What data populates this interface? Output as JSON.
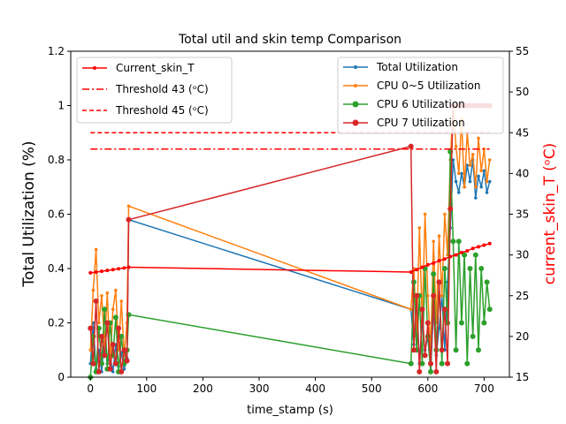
{
  "chart_data": {
    "type": "line",
    "title": "Total util and skin temp Comparison",
    "xlabel": "time_stamp (s)",
    "ylabel": "Total Utilization (%)",
    "y2label": "current_skin_T (ᵒC)",
    "xlim": [
      -35,
      745
    ],
    "ylim": [
      0,
      1.2
    ],
    "y2lim": [
      15,
      55
    ],
    "xticks": [
      0,
      100,
      200,
      300,
      400,
      500,
      600,
      700
    ],
    "yticks": [
      0.0,
      0.2,
      0.4,
      0.6,
      0.8,
      1.0,
      1.2
    ],
    "y2ticks": [
      15,
      20,
      25,
      30,
      35,
      40,
      45,
      50,
      55
    ],
    "legend_left_position": "upper-left",
    "legend_right_position": "upper-right",
    "colors": {
      "skin": "#ff0000",
      "total": "#1f77b4",
      "cpu05": "#ff7f0e",
      "cpu6": "#2ca02c",
      "cpu7": "#d62728"
    },
    "right_axis_series": [
      {
        "name": "Current_skin_T",
        "style": "solid-star",
        "x": [
          0,
          10,
          20,
          30,
          40,
          50,
          60,
          68,
          570,
          580,
          590,
          600,
          610,
          620,
          630,
          640,
          650,
          660,
          670,
          680,
          690,
          700,
          710
        ],
        "y": [
          27.8,
          27.9,
          28.0,
          28.1,
          28.2,
          28.3,
          28.4,
          28.5,
          27.9,
          28.2,
          28.5,
          28.8,
          29.0,
          29.3,
          29.5,
          29.8,
          30.0,
          30.3,
          30.5,
          30.8,
          31.0,
          31.2,
          31.4
        ]
      },
      {
        "name": "Threshold 43 (ᵒC)",
        "style": "dashdot",
        "x": [
          0,
          710
        ],
        "y": [
          43,
          43
        ]
      },
      {
        "name": "Threshold 45 (ᵒC)",
        "style": "dashed",
        "x": [
          0,
          710
        ],
        "y": [
          45,
          45
        ]
      }
    ],
    "left_axis_series": [
      {
        "name": "Total Utilization",
        "style": "line-dot",
        "x": [
          0,
          5,
          10,
          15,
          20,
          25,
          30,
          35,
          40,
          45,
          50,
          55,
          60,
          65,
          68,
          570,
          575,
          580,
          585,
          590,
          595,
          600,
          605,
          610,
          615,
          620,
          625,
          630,
          635,
          640,
          645,
          650,
          655,
          660,
          665,
          670,
          675,
          680,
          685,
          690,
          695,
          700,
          705,
          710
        ],
        "y": [
          0.05,
          0.2,
          0.03,
          0.1,
          0.02,
          0.15,
          0.05,
          0.08,
          0.02,
          0.12,
          0.04,
          0.09,
          0.03,
          0.07,
          0.58,
          0.25,
          0.12,
          0.3,
          0.05,
          0.2,
          0.1,
          0.15,
          0.02,
          0.25,
          0.08,
          0.18,
          0.3,
          0.1,
          0.35,
          0.55,
          0.8,
          0.72,
          0.68,
          0.75,
          0.7,
          0.78,
          0.72,
          0.8,
          0.66,
          0.74,
          0.7,
          0.76,
          0.68,
          0.72
        ]
      },
      {
        "name": "CPU 0~5 Utilization",
        "style": "line-dot",
        "x": [
          0,
          5,
          10,
          15,
          20,
          25,
          30,
          35,
          40,
          45,
          50,
          55,
          60,
          65,
          68,
          570,
          575,
          580,
          585,
          590,
          595,
          600,
          605,
          610,
          615,
          620,
          625,
          630,
          635,
          640,
          645,
          650,
          655,
          660,
          665,
          670,
          675,
          680,
          685,
          690,
          695,
          700,
          705,
          710
        ],
        "y": [
          0.1,
          0.32,
          0.47,
          0.2,
          0.3,
          0.12,
          0.31,
          0.05,
          0.25,
          0.32,
          0.1,
          0.28,
          0.08,
          0.2,
          0.63,
          0.25,
          0.4,
          0.15,
          0.55,
          0.2,
          0.6,
          0.3,
          0.1,
          0.5,
          0.2,
          0.52,
          0.3,
          0.6,
          0.45,
          0.8,
          1.0,
          0.85,
          0.75,
          0.95,
          0.7,
          0.9,
          0.78,
          0.82,
          0.7,
          0.88,
          0.76,
          0.84,
          0.72,
          0.8
        ]
      },
      {
        "name": "CPU 6 Utilization",
        "style": "line-circle",
        "x": [
          0,
          5,
          10,
          15,
          20,
          25,
          30,
          35,
          40,
          45,
          50,
          55,
          60,
          65,
          68,
          570,
          575,
          580,
          585,
          590,
          595,
          600,
          605,
          610,
          615,
          620,
          625,
          630,
          635,
          640,
          645,
          650,
          655,
          660,
          665,
          670,
          675,
          680,
          685,
          690,
          695,
          700,
          705,
          710
        ],
        "y": [
          0.0,
          0.15,
          0.02,
          0.18,
          0.05,
          0.25,
          0.03,
          0.2,
          0.08,
          0.22,
          0.02,
          0.15,
          0.05,
          0.1,
          0.23,
          0.05,
          0.35,
          0.1,
          0.3,
          0.05,
          0.4,
          0.15,
          0.02,
          0.38,
          0.1,
          0.35,
          0.05,
          0.4,
          0.2,
          0.83,
          0.5,
          0.1,
          0.5,
          0.2,
          0.45,
          0.05,
          0.4,
          0.15,
          0.45,
          0.1,
          0.4,
          0.2,
          0.35,
          0.25
        ]
      },
      {
        "name": "CPU 7 Utilization",
        "style": "line-circle",
        "x": [
          0,
          5,
          10,
          15,
          20,
          25,
          30,
          35,
          40,
          45,
          50,
          55,
          60,
          65,
          68,
          570,
          575,
          580,
          585,
          590,
          595,
          600,
          605,
          610,
          615,
          620,
          625,
          630,
          635,
          640,
          645,
          650,
          655,
          660,
          665,
          670,
          675,
          680,
          685,
          690,
          695,
          700,
          705,
          710
        ],
        "y": [
          0.18,
          0.05,
          0.28,
          0.02,
          0.15,
          0.08,
          0.2,
          0.03,
          0.12,
          0.05,
          0.18,
          0.02,
          0.1,
          0.06,
          0.58,
          0.85,
          0.1,
          0.3,
          0.02,
          0.25,
          0.08,
          0.2,
          0.05,
          0.3,
          0.02,
          0.35,
          0.1,
          0.25,
          0.05,
          0.62,
          1.0,
          1.0,
          1.0,
          1.0,
          1.0,
          1.0,
          1.0,
          1.0,
          1.0,
          1.0,
          1.0,
          1.0,
          1.0,
          1.0
        ]
      }
    ]
  }
}
